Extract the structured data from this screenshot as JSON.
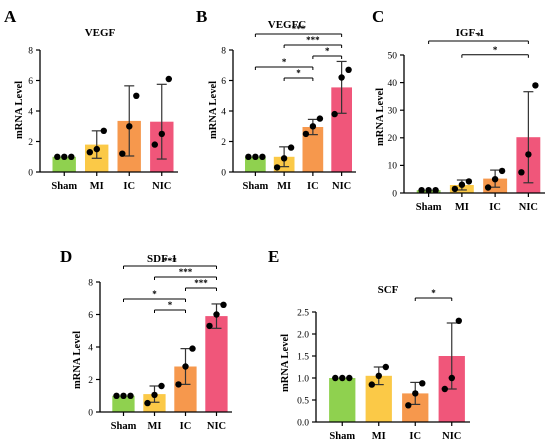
{
  "colors": {
    "Sham": "#8fd14f",
    "MI": "#fbc947",
    "IC": "#f6984d",
    "NIC": "#f0567a",
    "axis": "#000000",
    "errorbar": "#333333",
    "point": "#000000"
  },
  "chart_data": [
    {
      "type": "bar",
      "panel_label": "A",
      "title": "VEGF",
      "ylabel": "mRNA Level",
      "categories": [
        "Sham",
        "MI",
        "IC",
        "NIC"
      ],
      "values": [
        1.0,
        1.8,
        3.35,
        3.3
      ],
      "error_sd": [
        0.0,
        0.9,
        2.3,
        2.45
      ],
      "points": [
        [
          1.0,
          1.0,
          1.0
        ],
        [
          1.3,
          1.5,
          2.7
        ],
        [
          1.2,
          3.0,
          5.0
        ],
        [
          1.8,
          2.5,
          6.1
        ]
      ],
      "ylim": [
        0,
        8
      ],
      "yticks": [
        0,
        2,
        4,
        6,
        8
      ],
      "significance": []
    },
    {
      "type": "bar",
      "panel_label": "B",
      "title": "VEGFC",
      "ylabel": "mRNA Level",
      "categories": [
        "Sham",
        "MI",
        "IC",
        "NIC"
      ],
      "values": [
        1.0,
        1.0,
        2.95,
        5.55
      ],
      "error_sd": [
        0.0,
        0.65,
        0.5,
        1.7
      ],
      "points": [
        [
          1.0,
          1.0,
          1.0
        ],
        [
          0.3,
          0.9,
          1.6
        ],
        [
          2.5,
          3.0,
          3.5
        ],
        [
          3.8,
          6.2,
          6.7
        ]
      ],
      "ylim": [
        0,
        8
      ],
      "yticks": [
        0,
        2,
        4,
        6,
        8
      ],
      "significance": [
        {
          "from": 0,
          "to": 3,
          "label": "***"
        },
        {
          "from": 1,
          "to": 3,
          "label": "***"
        },
        {
          "from": 2,
          "to": 3,
          "label": "*"
        },
        {
          "from": 0,
          "to": 2,
          "label": "*"
        },
        {
          "from": 1,
          "to": 2,
          "label": "*"
        }
      ]
    },
    {
      "type": "bar",
      "panel_label": "C",
      "title": "IGF-1",
      "ylabel": "mRNA Level",
      "categories": [
        "Sham",
        "MI",
        "IC",
        "NIC"
      ],
      "values": [
        1.0,
        2.9,
        5.2,
        20.2
      ],
      "error_sd": [
        0.0,
        1.8,
        3.1,
        16.5
      ],
      "points": [
        [
          1.0,
          1.0,
          1.0
        ],
        [
          1.5,
          3.0,
          4.2
        ],
        [
          2.0,
          5.0,
          8.0
        ],
        [
          7.5,
          14.0,
          39.0
        ]
      ],
      "ylim": [
        0,
        50
      ],
      "yticks": [
        0,
        10,
        20,
        30,
        40,
        50
      ],
      "significance": [
        {
          "from": 0,
          "to": 3,
          "label": "*"
        },
        {
          "from": 1,
          "to": 3,
          "label": "*"
        }
      ]
    },
    {
      "type": "bar",
      "panel_label": "D",
      "title": "SDF-1",
      "ylabel": "mRNA Level",
      "categories": [
        "Sham",
        "MI",
        "IC",
        "NIC"
      ],
      "values": [
        1.0,
        1.1,
        2.8,
        5.9
      ],
      "error_sd": [
        0.0,
        0.5,
        1.1,
        0.75
      ],
      "points": [
        [
          1.0,
          1.0,
          1.0
        ],
        [
          0.55,
          1.05,
          1.6
        ],
        [
          1.7,
          2.8,
          3.9
        ],
        [
          5.3,
          6.0,
          6.6
        ]
      ],
      "ylim": [
        0,
        8
      ],
      "yticks": [
        0,
        2,
        4,
        6,
        8
      ],
      "significance": [
        {
          "from": 0,
          "to": 3,
          "label": "***"
        },
        {
          "from": 1,
          "to": 3,
          "label": "***"
        },
        {
          "from": 2,
          "to": 3,
          "label": "***"
        },
        {
          "from": 0,
          "to": 2,
          "label": "*"
        },
        {
          "from": 1,
          "to": 2,
          "label": "*"
        }
      ]
    },
    {
      "type": "bar",
      "panel_label": "E",
      "title": "SCF",
      "ylabel": "mRNA Level",
      "categories": [
        "Sham",
        "MI",
        "IC",
        "NIC"
      ],
      "values": [
        1.0,
        1.05,
        0.65,
        1.5
      ],
      "error_sd": [
        0.0,
        0.2,
        0.25,
        0.75
      ],
      "points": [
        [
          1.0,
          1.0,
          1.0
        ],
        [
          0.85,
          1.05,
          1.25
        ],
        [
          0.38,
          0.65,
          0.88
        ],
        [
          0.75,
          1.0,
          2.3
        ]
      ],
      "ylim": [
        0,
        2.5
      ],
      "yticks": [
        0.0,
        0.5,
        1.0,
        1.5,
        2.0,
        2.5
      ],
      "significance": [
        {
          "from": 2,
          "to": 3,
          "label": "*"
        }
      ]
    }
  ]
}
